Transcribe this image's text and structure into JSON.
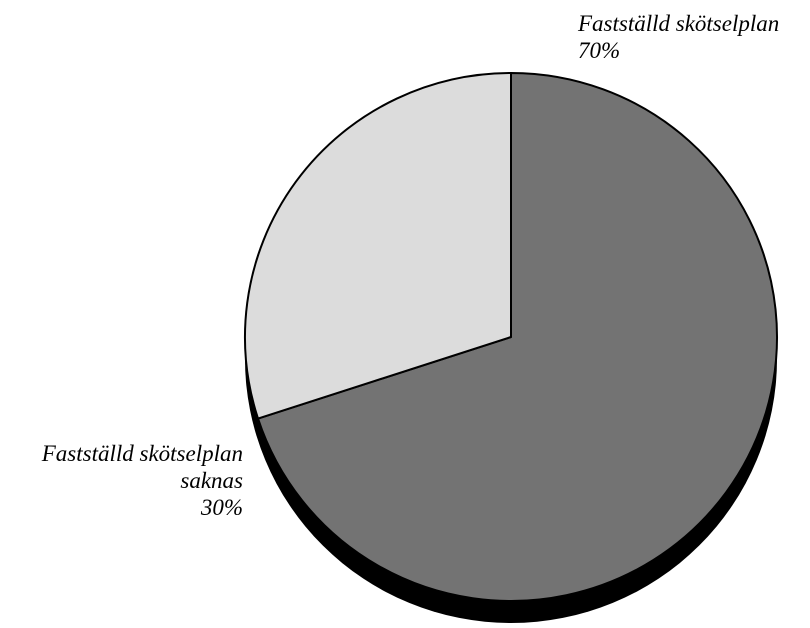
{
  "chart_data": {
    "type": "pie",
    "title": "",
    "slices": [
      {
        "label_lines": [
          "Fastställd skötselplan"
        ],
        "percent_label": "70%",
        "value": 70,
        "color": "#737373"
      },
      {
        "label_lines": [
          "Fastställd skötselplan",
          "saknas"
        ],
        "percent_label": "30%",
        "value": 30,
        "color": "#dcdcdc"
      }
    ],
    "shadow_color": "#000000",
    "outline_color": "#000000",
    "start_angle_deg": 0,
    "direction": "clockwise",
    "three_d": true
  }
}
